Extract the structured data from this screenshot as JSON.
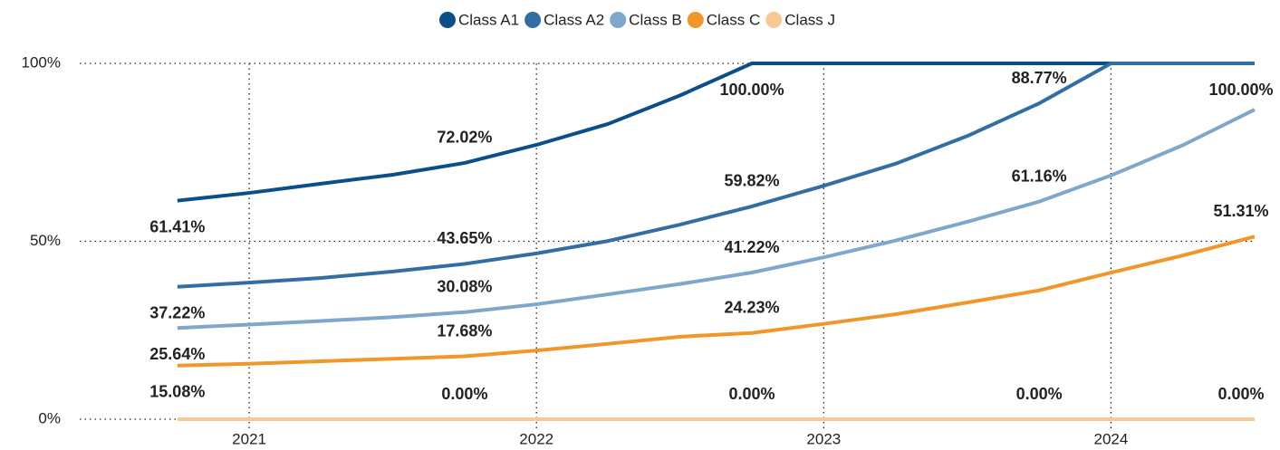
{
  "chart_data": {
    "type": "line",
    "x": [
      2020.75,
      2021,
      2021.25,
      2021.5,
      2021.75,
      2022,
      2022.25,
      2022.5,
      2022.75,
      2023,
      2023.25,
      2023.5,
      2023.75,
      2024,
      2024.25,
      2024.5
    ],
    "xlim": [
      2020.41,
      2024.5
    ],
    "xticks": [
      2021,
      2022,
      2023,
      2024
    ],
    "ylim": [
      0,
      100
    ],
    "yticks": [
      {
        "value": 0,
        "label": "0%"
      },
      {
        "value": 50,
        "label": "50%"
      },
      {
        "value": 100,
        "label": "100%"
      }
    ],
    "grid": true,
    "legend": "top",
    "series": [
      {
        "name": "Class A1",
        "color": "#0b4f8a",
        "values": [
          61.41,
          63.6,
          66.2,
          68.7,
          72.02,
          77.1,
          83,
          91,
          100,
          100,
          100,
          100,
          100,
          100,
          100,
          100
        ],
        "value_labels": [
          "61.41%",
          null,
          null,
          null,
          "72.02%",
          null,
          null,
          null,
          "100.00%",
          null,
          null,
          null,
          null,
          null,
          null,
          "100.00%"
        ]
      },
      {
        "name": "Class A2",
        "color": "#336ea3",
        "values": [
          37.22,
          38.4,
          39.7,
          41.5,
          43.65,
          46.6,
          50.1,
          54.7,
          59.82,
          65.6,
          71.8,
          79.6,
          88.77,
          100,
          100,
          100
        ],
        "value_labels": [
          "37.22%",
          null,
          null,
          null,
          "43.65%",
          null,
          null,
          null,
          "59.82%",
          null,
          null,
          null,
          "88.77%",
          null,
          null,
          null
        ]
      },
      {
        "name": "Class B",
        "color": "#7fa7cc",
        "values": [
          25.64,
          26.6,
          27.6,
          28.7,
          30.08,
          32.3,
          35.1,
          38,
          41.22,
          45.5,
          50.2,
          55.5,
          61.16,
          68.5,
          77,
          87
        ],
        "value_labels": [
          "25.64%",
          null,
          null,
          null,
          "30.08%",
          null,
          null,
          null,
          "41.22%",
          null,
          null,
          null,
          "61.16%",
          null,
          null,
          null
        ]
      },
      {
        "name": "Class C",
        "color": "#f0962b",
        "values": [
          15.08,
          15.6,
          16.3,
          17,
          17.68,
          19.3,
          21.2,
          23.2,
          24.23,
          26.8,
          29.5,
          32.8,
          36.2,
          41.2,
          46,
          51.31
        ],
        "value_labels": [
          "15.08%",
          null,
          null,
          null,
          "17.68%",
          null,
          null,
          null,
          "24.23%",
          null,
          null,
          null,
          null,
          null,
          null,
          "51.31%"
        ]
      },
      {
        "name": "Class J",
        "color": "#f6c995",
        "values": [
          0,
          0,
          0,
          0,
          0,
          0,
          0,
          0,
          0,
          0,
          0,
          0,
          0,
          0,
          0,
          0
        ],
        "value_labels": [
          null,
          null,
          null,
          null,
          "0.00%",
          null,
          null,
          null,
          "0.00%",
          null,
          null,
          null,
          "0.00%",
          null,
          null,
          "0.00%"
        ]
      }
    ]
  }
}
